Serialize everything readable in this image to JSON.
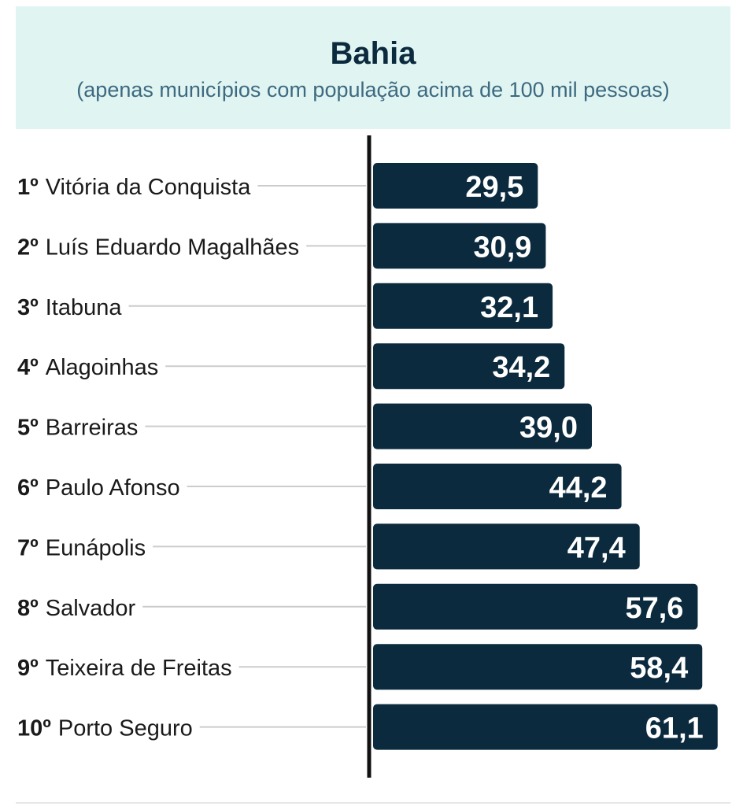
{
  "header": {
    "title": "Bahia",
    "subtitle": "(apenas municípios com população acima de 100 mil pessoas)"
  },
  "colors": {
    "bar": "#0b2a3d",
    "bar_label": "#ffffff",
    "header_bg": "#e0f4f2",
    "axis": "#111111",
    "leader": "#cccccc",
    "category_text": "#1a1a1a"
  },
  "chart_data": {
    "type": "bar",
    "orientation": "horizontal",
    "title": "Bahia",
    "subtitle": "(apenas municípios com população acima de 100 mil pessoas)",
    "categories": [
      {
        "rank": "1º",
        "name": "Vitória da Conquista"
      },
      {
        "rank": "2º",
        "name": "Luís Eduardo Magalhães"
      },
      {
        "rank": "3º",
        "name": "Itabuna"
      },
      {
        "rank": "4º",
        "name": "Alagoinhas"
      },
      {
        "rank": "5º",
        "name": "Barreiras"
      },
      {
        "rank": "6º",
        "name": "Paulo Afonso"
      },
      {
        "rank": "7º",
        "name": "Eunápolis"
      },
      {
        "rank": "8º",
        "name": "Salvador"
      },
      {
        "rank": "9º",
        "name": "Teixeira de Freitas"
      },
      {
        "rank": "10º",
        "name": "Porto Seguro"
      }
    ],
    "values": [
      29.5,
      30.9,
      32.1,
      34.2,
      39.0,
      44.2,
      47.4,
      57.6,
      58.4,
      61.1
    ],
    "value_labels": [
      "29,5",
      "30,9",
      "32,1",
      "34,2",
      "39,0",
      "44,2",
      "47,4",
      "57,6",
      "58,4",
      "61,1"
    ],
    "xlabel": "",
    "ylabel": "",
    "grid": false,
    "legend": "none"
  }
}
